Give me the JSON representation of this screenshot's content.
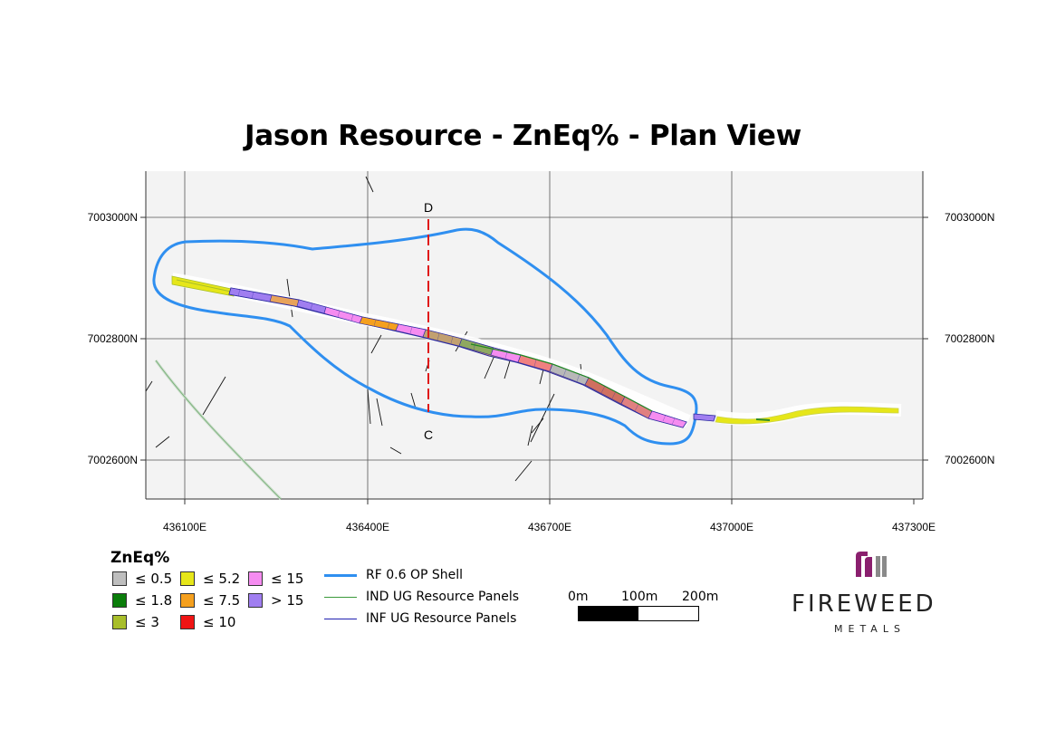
{
  "title": "Jason Resource - ZnEq% - Plan View",
  "axes": {
    "northings": [
      "7003000N",
      "7002800N",
      "7002600N"
    ],
    "eastings": [
      "436100E",
      "436400E",
      "436700E",
      "437000E",
      "437300E"
    ]
  },
  "section": {
    "top_label": "D",
    "bottom_label": "C"
  },
  "legend": {
    "title": "ZnEq%",
    "classes": [
      {
        "label": "≤ 0.5",
        "color": "#bebebe"
      },
      {
        "label": "≤ 1.8",
        "color": "#0a7d0a"
      },
      {
        "label": "≤ 3",
        "color": "#a8be2a"
      },
      {
        "label": "≤ 5.2",
        "color": "#e6e619"
      },
      {
        "label": "≤ 7.5",
        "color": "#f5a01e"
      },
      {
        "label": "≤ 10",
        "color": "#f01414"
      },
      {
        "label": "≤ 15",
        "color": "#f58cf0"
      },
      {
        "label": "> 15",
        "color": "#a07ef0"
      }
    ],
    "lines": [
      {
        "label": "RF 0.6 OP Shell",
        "color": "#2f8ff0"
      },
      {
        "label": "IND UG Resource Panels",
        "color": "#3a9a3a"
      },
      {
        "label": "INF UG Resource Panels",
        "color": "#2020b0"
      }
    ]
  },
  "scale_bar": {
    "labels": [
      "0m",
      "100m",
      "200m"
    ]
  },
  "logo": {
    "name": "FIREWEED",
    "sub": "METALS",
    "accent": "#8a1f6e"
  }
}
